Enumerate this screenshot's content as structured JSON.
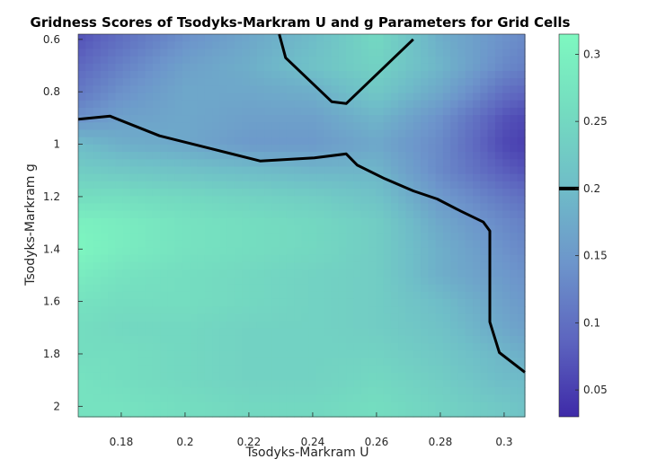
{
  "chart_data": {
    "type": "heatmap",
    "title": "Gridness Scores of Tsodyks-Markram U and g Parameters for Grid Cells",
    "xlabel": "Tsodyks-Markram U",
    "ylabel": "Tsodyks-Markram g",
    "xlim": [
      0.1665,
      0.3065
    ],
    "ylim": [
      0.58,
      2.04
    ],
    "y_reversed": true,
    "x_ticks": [
      0.18,
      0.2,
      0.22,
      0.24,
      0.26,
      0.28,
      0.3
    ],
    "x_tick_labels": [
      "0.18",
      "0.2",
      "0.22",
      "0.24",
      "0.26",
      "0.28",
      "0.3"
    ],
    "y_ticks": [
      0.6,
      0.8,
      1.0,
      1.2,
      1.4,
      1.6,
      1.8,
      2.0
    ],
    "y_tick_labels": [
      "0.6",
      "0.8",
      "1",
      "1.2",
      "1.4",
      "1.6",
      "1.8",
      "2"
    ],
    "colorbar": {
      "range": [
        0.03,
        0.315
      ],
      "ticks": [
        0.05,
        0.1,
        0.15,
        0.2,
        0.25,
        0.3
      ],
      "tick_labels": [
        "0.05",
        "0.1",
        "0.15",
        "0.2",
        "0.25",
        "0.3"
      ],
      "highlight_level": 0.2,
      "colors": [
        "#3e2aa8",
        "#5d65bf",
        "#6d95cb",
        "#6fbdc8",
        "#74dcc0",
        "#7ef8c0"
      ]
    },
    "contour_level": 0.2,
    "grid_x": [
      0.1665,
      0.18,
      0.2,
      0.22,
      0.24,
      0.26,
      0.28,
      0.3,
      0.3065
    ],
    "grid_y": [
      0.58,
      0.6,
      0.7,
      0.8,
      0.9,
      1.0,
      1.1,
      1.2,
      1.3,
      1.4,
      1.5,
      1.6,
      1.7,
      1.8,
      1.9,
      2.0,
      2.04
    ],
    "values": [
      [
        0.07,
        0.1,
        0.14,
        0.17,
        0.2,
        0.25,
        0.18,
        0.14,
        0.13
      ],
      [
        0.07,
        0.1,
        0.14,
        0.17,
        0.2,
        0.25,
        0.18,
        0.14,
        0.13
      ],
      [
        0.09,
        0.12,
        0.16,
        0.18,
        0.21,
        0.24,
        0.19,
        0.13,
        0.12
      ],
      [
        0.11,
        0.14,
        0.17,
        0.17,
        0.18,
        0.22,
        0.17,
        0.1,
        0.09
      ],
      [
        0.14,
        0.16,
        0.17,
        0.16,
        0.16,
        0.19,
        0.14,
        0.07,
        0.06
      ],
      [
        0.2,
        0.18,
        0.17,
        0.15,
        0.15,
        0.17,
        0.13,
        0.06,
        0.05
      ],
      [
        0.23,
        0.22,
        0.21,
        0.2,
        0.19,
        0.19,
        0.13,
        0.08,
        0.07
      ],
      [
        0.26,
        0.26,
        0.25,
        0.24,
        0.23,
        0.21,
        0.15,
        0.11,
        0.1
      ],
      [
        0.3,
        0.29,
        0.27,
        0.26,
        0.25,
        0.23,
        0.17,
        0.13,
        0.12
      ],
      [
        0.31,
        0.29,
        0.27,
        0.26,
        0.25,
        0.23,
        0.18,
        0.14,
        0.13
      ],
      [
        0.29,
        0.27,
        0.26,
        0.25,
        0.24,
        0.23,
        0.18,
        0.15,
        0.14
      ],
      [
        0.27,
        0.26,
        0.26,
        0.25,
        0.24,
        0.23,
        0.2,
        0.16,
        0.15
      ],
      [
        0.26,
        0.25,
        0.25,
        0.24,
        0.24,
        0.23,
        0.21,
        0.17,
        0.16
      ],
      [
        0.26,
        0.26,
        0.25,
        0.24,
        0.24,
        0.24,
        0.22,
        0.19,
        0.18
      ],
      [
        0.27,
        0.26,
        0.25,
        0.24,
        0.24,
        0.25,
        0.23,
        0.2,
        0.2
      ],
      [
        0.27,
        0.27,
        0.26,
        0.25,
        0.25,
        0.26,
        0.24,
        0.22,
        0.21
      ],
      [
        0.27,
        0.27,
        0.26,
        0.25,
        0.25,
        0.26,
        0.24,
        0.22,
        0.21
      ]
    ],
    "contours_0_2": [
      {
        "x": [
          0.1665,
          0.1765,
          0.192,
          0.2085,
          0.2235,
          0.2405,
          0.2505,
          0.254,
          0.2625,
          0.2715,
          0.279,
          0.2865,
          0.2935,
          0.2955,
          0.2955,
          0.2955,
          0.2985,
          0.3065
        ],
        "y": [
          0.905,
          0.893,
          0.968,
          1.018,
          1.064,
          1.052,
          1.037,
          1.08,
          1.131,
          1.178,
          1.209,
          1.256,
          1.297,
          1.331,
          1.5,
          1.678,
          1.795,
          1.87
        ]
      },
      {
        "x": [
          0.2295,
          0.2315,
          0.246,
          0.2505,
          0.2715
        ],
        "y": [
          0.58,
          0.67,
          0.838,
          0.845,
          0.6
        ]
      }
    ]
  }
}
